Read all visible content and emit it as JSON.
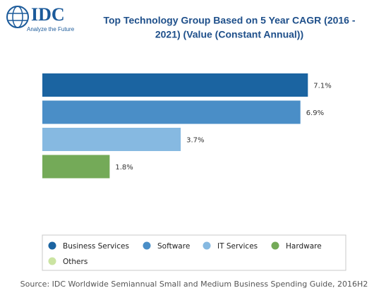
{
  "logo": {
    "name": "IDC",
    "tagline": "Analyze the Future"
  },
  "chart_data": {
    "type": "bar",
    "orientation": "horizontal",
    "title": [
      "Top Technology Group Based on 5 Year CAGR (2016 -",
      "2021) (Value (Constant Annual))"
    ],
    "categories": [
      "Business Services",
      "Software",
      "IT Services",
      "Hardware",
      "Others"
    ],
    "values": [
      7.1,
      6.9,
      3.7,
      1.8,
      null
    ],
    "value_labels": [
      "7.1%",
      "6.9%",
      "3.7%",
      "1.8%",
      null
    ],
    "colors": [
      "#1b64a1",
      "#4a8ec7",
      "#86b9e1",
      "#74aa58",
      "#cbe4a2"
    ],
    "source": "Source: IDC Worldwide Semiannual Small and Medium Business Spending Guide, 2016H2"
  }
}
